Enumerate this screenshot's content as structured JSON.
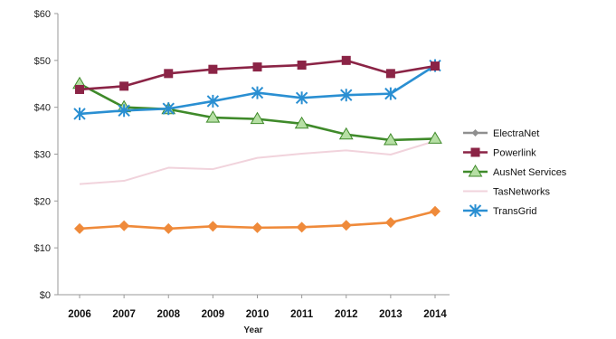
{
  "chart_data": {
    "type": "line",
    "title": "",
    "xlabel": "Year",
    "ylabel": "",
    "x": [
      "2006",
      "2007",
      "2008",
      "2009",
      "2010",
      "2011",
      "2012",
      "2013",
      "2014"
    ],
    "yticks": [
      "$0",
      "$10",
      "$20",
      "$30",
      "$40",
      "$50",
      "$60"
    ],
    "ylim": [
      0,
      60
    ],
    "grid": false,
    "legend": "right",
    "series": [
      {
        "name": "ElectraNet",
        "color": "#8f8f8f",
        "marker": "diamond-small",
        "values": [
          null,
          null,
          null,
          null,
          null,
          null,
          null,
          null,
          null
        ]
      },
      {
        "name": "Powerlink",
        "color": "#8b2446",
        "marker": "square",
        "values": [
          43.8,
          44.5,
          47.2,
          48.1,
          48.6,
          49.0,
          50.0,
          47.2,
          48.8
        ]
      },
      {
        "name": "AusNet Services",
        "color": "#3f8a2a",
        "marker": "triangle",
        "values": [
          45.0,
          40.0,
          39.6,
          37.8,
          37.5,
          36.5,
          34.2,
          33.0,
          33.3
        ]
      },
      {
        "name": "TasNetworks",
        "color": "#f1d3dc",
        "marker": "none",
        "values": [
          23.6,
          24.3,
          27.1,
          26.8,
          29.2,
          30.1,
          30.8,
          29.9,
          32.8
        ]
      },
      {
        "name": "TransGrid",
        "color": "#2a8fd2",
        "marker": "star",
        "values": [
          38.6,
          39.3,
          39.7,
          41.3,
          43.1,
          42.0,
          42.6,
          42.9,
          48.9
        ]
      },
      {
        "name": "",
        "color": "#ef8a3a",
        "marker": "diamond",
        "values": [
          14.1,
          14.7,
          14.1,
          14.6,
          14.3,
          14.4,
          14.8,
          15.4,
          17.8
        ]
      }
    ]
  }
}
